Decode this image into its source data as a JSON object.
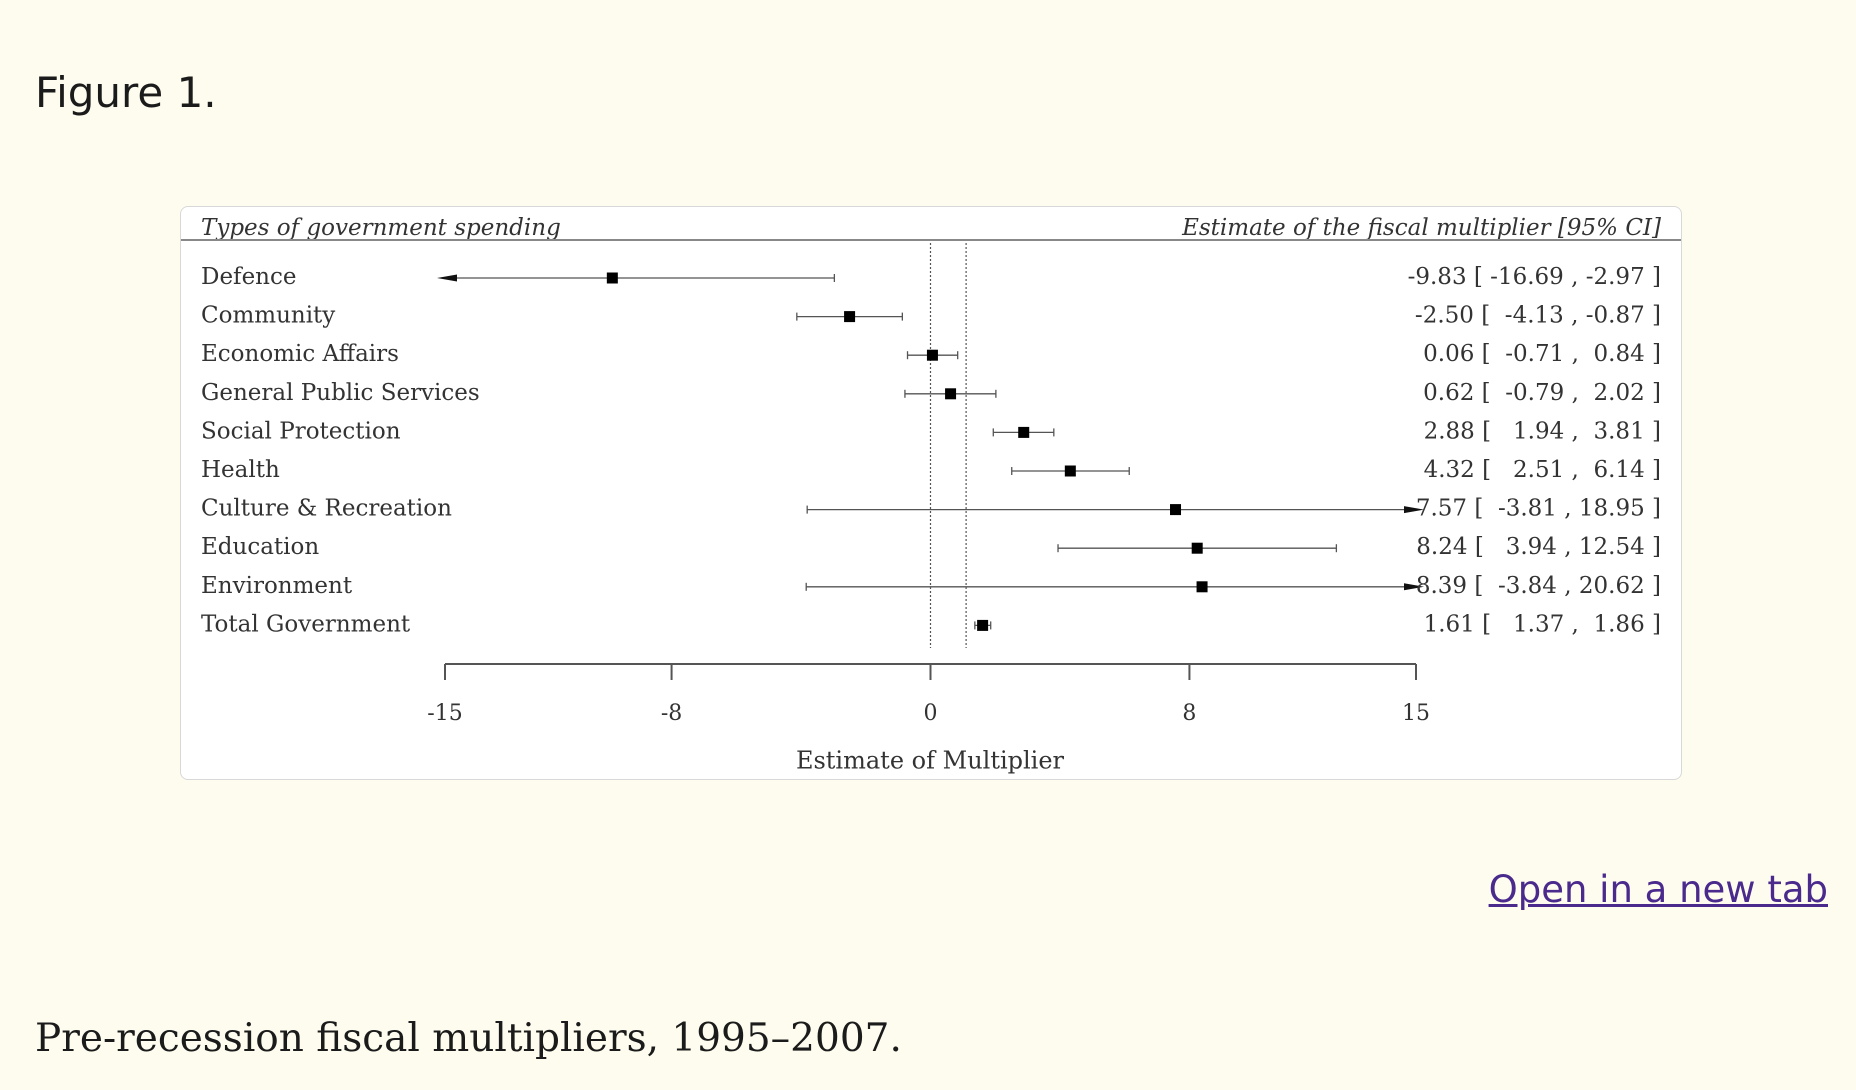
{
  "figure": {
    "label": "Figure 1.",
    "caption": "Pre-recession fiscal multipliers, 1995–2007.",
    "open_link_label": "Open in a new tab"
  },
  "chart_data": {
    "type": "forest",
    "left_header": "Types of government spending",
    "right_header": "Estimate of the fiscal multiplier [95% CI]",
    "xlabel": "Estimate of Multiplier",
    "xlim": [
      -15,
      15
    ],
    "xticks": [
      -15,
      -8,
      0,
      8,
      15
    ],
    "xtick_labels": [
      "-15",
      "-8",
      "0",
      "8",
      "15"
    ],
    "reference_lines": [
      0,
      1.1
    ],
    "rows": [
      {
        "name": "Defence",
        "estimate": -9.83,
        "lower": -16.69,
        "upper": -2.97,
        "ci_text": "-9.83 [ -16.69 , -2.97 ]"
      },
      {
        "name": "Community",
        "estimate": -2.5,
        "lower": -4.13,
        "upper": -0.87,
        "ci_text": "-2.50 [  -4.13 , -0.87 ]"
      },
      {
        "name": "Economic Affairs",
        "estimate": 0.06,
        "lower": -0.71,
        "upper": 0.84,
        "ci_text": "0.06 [  -0.71 ,  0.84 ]"
      },
      {
        "name": "General Public Services",
        "estimate": 0.62,
        "lower": -0.79,
        "upper": 2.02,
        "ci_text": "0.62 [  -0.79 ,  2.02 ]"
      },
      {
        "name": "Social Protection",
        "estimate": 2.88,
        "lower": 1.94,
        "upper": 3.81,
        "ci_text": "2.88 [   1.94 ,  3.81 ]"
      },
      {
        "name": "Health",
        "estimate": 4.32,
        "lower": 2.51,
        "upper": 6.14,
        "ci_text": "4.32 [   2.51 ,  6.14 ]"
      },
      {
        "name": "Culture & Recreation",
        "estimate": 7.57,
        "lower": -3.81,
        "upper": 18.95,
        "ci_text": "7.57 [  -3.81 , 18.95 ]"
      },
      {
        "name": "Education",
        "estimate": 8.24,
        "lower": 3.94,
        "upper": 12.54,
        "ci_text": "8.24 [   3.94 , 12.54 ]"
      },
      {
        "name": "Environment",
        "estimate": 8.39,
        "lower": -3.84,
        "upper": 20.62,
        "ci_text": "8.39 [  -3.84 , 20.62 ]"
      },
      {
        "name": "Total Government",
        "estimate": 1.61,
        "lower": 1.37,
        "upper": 1.86,
        "ci_text": "1.61 [   1.37 ,  1.86 ]"
      }
    ]
  }
}
